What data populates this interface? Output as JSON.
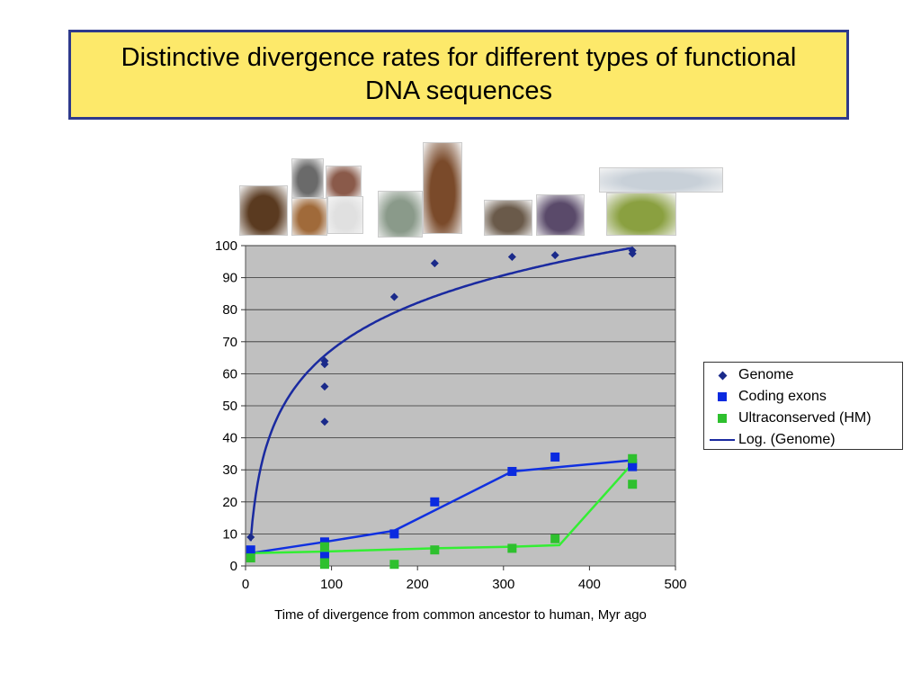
{
  "slide": {
    "title": "Distinctive divergence rates for different types of functional DNA sequences"
  },
  "images": [
    {
      "name": "chimpanzee-photo",
      "color": "#5a3a20"
    },
    {
      "name": "mouse-photo",
      "color": "#6a6a6a"
    },
    {
      "name": "rat-photo",
      "color": "#8a5a4a"
    },
    {
      "name": "dog-photo",
      "color": "#a06a3a"
    },
    {
      "name": "cow-photo",
      "color": "#e0e0e0"
    },
    {
      "name": "opossum-photo",
      "color": "#8a9a8a"
    },
    {
      "name": "platypus-photo",
      "color": "#7a4a2a"
    },
    {
      "name": "chicken-photo",
      "color": "#6a5a4a"
    },
    {
      "name": "frog-photo",
      "color": "#5a4a6a"
    },
    {
      "name": "zebrafish-photo",
      "color": "#c8d0d8"
    },
    {
      "name": "pufferfish-photo",
      "color": "#8aa040"
    }
  ],
  "chart_data": {
    "type": "scatter",
    "xlabel": "Time of divergence from common ancestor to human, Myr ago",
    "ylabel": "",
    "xlim": [
      0,
      500
    ],
    "ylim": [
      0,
      100
    ],
    "xticks": [
      0,
      100,
      200,
      300,
      400,
      500
    ],
    "yticks": [
      0,
      10,
      20,
      30,
      40,
      50,
      60,
      70,
      80,
      90,
      100
    ],
    "grid": "horizontal",
    "legend_position": "right",
    "plot_background": "#c0c0c0",
    "series": [
      {
        "name": "Genome",
        "marker": "diamond",
        "color": "#1a2a8a",
        "points": [
          [
            6,
            9
          ],
          [
            92,
            64
          ],
          [
            92,
            63
          ],
          [
            92,
            56
          ],
          [
            92,
            45
          ],
          [
            173,
            84
          ],
          [
            220,
            94.5
          ],
          [
            310,
            96.5
          ],
          [
            360,
            97
          ],
          [
            450,
            98.5
          ],
          [
            450,
            97.5
          ]
        ]
      },
      {
        "name": "Coding exons",
        "marker": "square",
        "color": "#0a2ae0",
        "points": [
          [
            6,
            5
          ],
          [
            92,
            7.5
          ],
          [
            92,
            3
          ],
          [
            173,
            10
          ],
          [
            220,
            20
          ],
          [
            310,
            29.5
          ],
          [
            360,
            34
          ],
          [
            450,
            31
          ],
          [
            450,
            32
          ]
        ],
        "line": [
          [
            6,
            4
          ],
          [
            92,
            7.5
          ],
          [
            173,
            11
          ],
          [
            310,
            29.5
          ],
          [
            450,
            33
          ]
        ]
      },
      {
        "name": "Ultraconserved (HM)",
        "marker": "square",
        "color": "#2ec02e",
        "points": [
          [
            6,
            2.5
          ],
          [
            92,
            6
          ],
          [
            92,
            1
          ],
          [
            92,
            0.5
          ],
          [
            173,
            0.5
          ],
          [
            220,
            5
          ],
          [
            310,
            5.5
          ],
          [
            360,
            8.5
          ],
          [
            450,
            33.5
          ],
          [
            450,
            25.5
          ]
        ],
        "line": [
          [
            6,
            4
          ],
          [
            92,
            4.5
          ],
          [
            220,
            5.5
          ],
          [
            310,
            6
          ],
          [
            365,
            6.5
          ],
          [
            450,
            32
          ]
        ]
      },
      {
        "name": "Log. (Genome)",
        "type": "line",
        "color": "#1a2aa0",
        "fit": {
          "form": "a*ln(x)+b",
          "a": 21.2,
          "b": -30.2
        }
      }
    ]
  }
}
